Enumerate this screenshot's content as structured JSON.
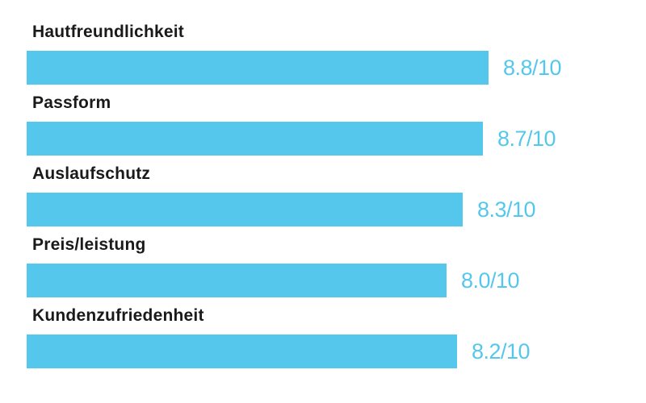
{
  "page": {
    "background": "#ffffff"
  },
  "chart_data": {
    "type": "bar",
    "orientation": "horizontal",
    "title": "",
    "categories": [
      "Hautfreundlichkeit",
      "Passform",
      "Auslaufschutz",
      "Preis/leistung",
      "Kundenzufriedenheit"
    ],
    "values": [
      8.8,
      8.7,
      8.3,
      8.0,
      8.2
    ],
    "value_labels": [
      "8.8/10",
      "8.7/10",
      "8.3/10",
      "8.0/10",
      "8.2/10"
    ],
    "scale_max": 10,
    "bar_color": "#55c7ec",
    "value_text_color": "#55c7ec",
    "category_text_color": "#1a1a1a",
    "grid": false,
    "legend_position": "none"
  }
}
